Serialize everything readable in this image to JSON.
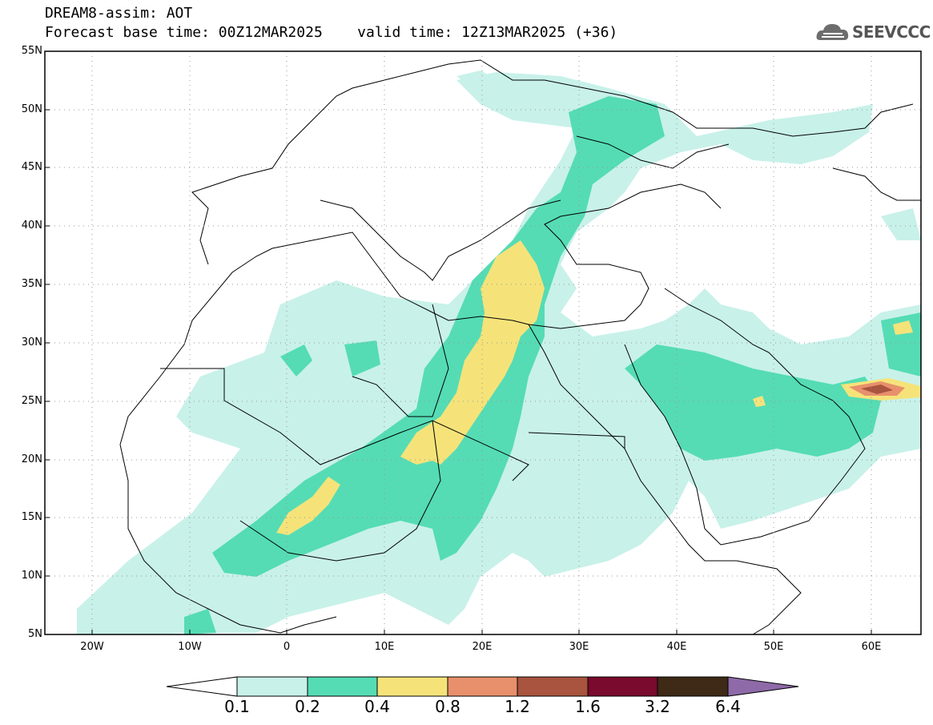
{
  "header": {
    "line1": "DREAM8-assim: AOT",
    "base_time_label": "Forecast base time: 00Z12MAR2025",
    "valid_time_label": "valid time: 12Z13MAR2025 (+36)"
  },
  "logo": {
    "text": "SEEVCCC",
    "icon": "cloud-icon"
  },
  "map": {
    "lon_range": [
      -25,
      65
    ],
    "lat_range": [
      5,
      55
    ],
    "lat_labels": [
      "55N",
      "50N",
      "45N",
      "40N",
      "35N",
      "30N",
      "25N",
      "20N",
      "15N",
      "10N",
      "5N"
    ],
    "lon_labels": [
      "20W",
      "10W",
      "0",
      "10E",
      "20E",
      "30E",
      "40E",
      "50E",
      "60E"
    ],
    "grid": "dotted"
  },
  "colorbar": {
    "labels": [
      "0.1",
      "0.2",
      "0.4",
      "0.8",
      "1.2",
      "1.6",
      "3.2",
      "6.4"
    ],
    "colors": [
      "#ffffff",
      "#c8f1e9",
      "#55dcb4",
      "#f5e37a",
      "#e8906c",
      "#a8543e",
      "#7a0a2e",
      "#3e2a16",
      "#8e6aa8"
    ]
  }
}
